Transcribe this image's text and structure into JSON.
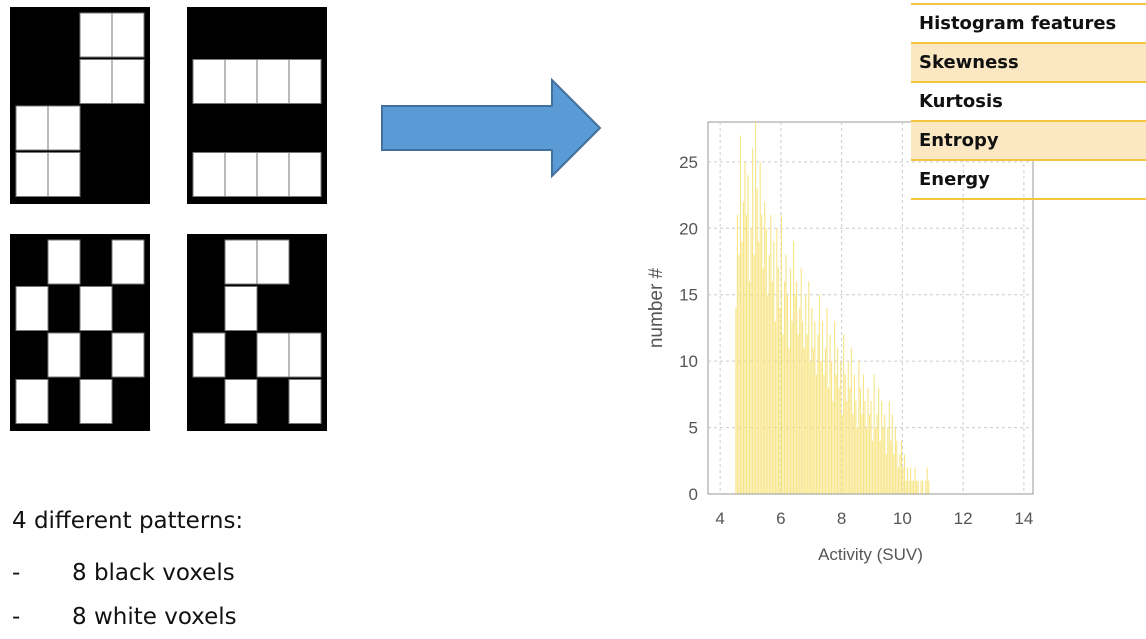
{
  "patterns": [
    {
      "name": "pattern-1",
      "white_cells": [
        [
          2,
          0
        ],
        [
          3,
          0
        ],
        [
          2,
          1
        ],
        [
          3,
          1
        ],
        [
          0,
          2
        ],
        [
          1,
          2
        ],
        [
          0,
          3
        ],
        [
          1,
          3
        ]
      ]
    },
    {
      "name": "pattern-2",
      "white_cells": [
        [
          0,
          1
        ],
        [
          1,
          1
        ],
        [
          2,
          1
        ],
        [
          3,
          1
        ],
        [
          0,
          3
        ],
        [
          1,
          3
        ],
        [
          2,
          3
        ],
        [
          3,
          3
        ]
      ]
    },
    {
      "name": "pattern-3",
      "white_cells": [
        [
          1,
          0
        ],
        [
          3,
          0
        ],
        [
          0,
          1
        ],
        [
          2,
          1
        ],
        [
          1,
          2
        ],
        [
          3,
          2
        ],
        [
          0,
          3
        ],
        [
          2,
          3
        ]
      ]
    },
    {
      "name": "pattern-4",
      "white_cells": [
        [
          1,
          0
        ],
        [
          2,
          0
        ],
        [
          1,
          1
        ],
        [
          0,
          2
        ],
        [
          2,
          2
        ],
        [
          3,
          2
        ],
        [
          1,
          3
        ],
        [
          3,
          3
        ]
      ]
    }
  ],
  "caption": {
    "title": "4 different patterns:",
    "items": [
      {
        "bullet": "-",
        "text": "8 black voxels"
      },
      {
        "bullet": "-",
        "text": "8 white voxels"
      }
    ]
  },
  "arrow_color": "#5b9bd5",
  "features": {
    "header": "Histogram features",
    "items": [
      "Skewness",
      "Kurtosis",
      "Entropy",
      "Energy"
    ],
    "accent": "#f5c542",
    "highlight": "#fbe8c2"
  },
  "chart_data": {
    "type": "bar",
    "xlabel": "Activity (SUV)",
    "ylabel": "number #",
    "xlim": [
      3.6,
      14.3
    ],
    "ylim": [
      0,
      28
    ],
    "xticks": [
      4,
      6,
      8,
      10,
      12,
      14
    ],
    "yticks": [
      0,
      5,
      10,
      15,
      20,
      25
    ],
    "grid": true,
    "bar_color": "#f7e27a",
    "bin_start": 4.5,
    "bin_width": 0.05,
    "values": [
      14,
      21,
      18,
      27,
      19,
      22,
      25,
      21,
      24,
      16,
      20,
      26,
      18,
      28,
      23,
      19,
      25,
      21,
      17,
      22,
      20,
      15,
      18,
      21,
      16,
      19,
      13,
      20,
      17,
      14,
      21,
      12,
      16,
      18,
      15,
      11,
      17,
      13,
      19,
      15,
      16,
      12,
      14,
      17,
      13,
      11,
      15,
      12,
      16,
      10,
      14,
      11,
      13,
      9,
      12,
      15,
      10,
      13,
      9,
      11,
      14,
      8,
      12,
      10,
      7,
      13,
      9,
      11,
      8,
      10,
      6,
      12,
      9,
      7,
      10,
      8,
      11,
      6,
      9,
      7,
      5,
      10,
      8,
      6,
      9,
      7,
      5,
      8,
      6,
      7,
      4,
      9,
      5,
      6,
      8,
      4,
      7,
      5,
      6,
      3,
      5,
      7,
      4,
      6,
      3,
      5,
      4,
      2,
      3,
      4,
      2,
      3,
      1,
      2,
      1,
      2,
      1,
      1,
      2,
      1,
      1,
      0,
      1,
      1,
      0,
      1,
      2,
      1
    ]
  }
}
